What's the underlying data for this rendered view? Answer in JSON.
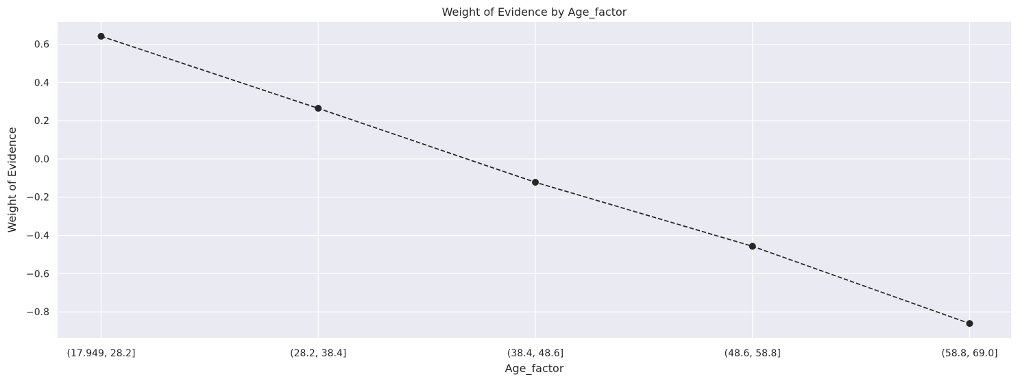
{
  "chart_data": {
    "type": "line",
    "title": "Weight of Evidence by Age_factor",
    "xlabel": "Age_factor",
    "ylabel": "Weight of Evidence",
    "categories": [
      "(17.949, 28.2]",
      "(28.2, 38.4]",
      "(38.4, 48.6]",
      "(48.6, 58.8]",
      "(58.8, 69.0]"
    ],
    "series": [
      {
        "values": [
          0.642,
          0.265,
          -0.122,
          -0.457,
          -0.861
        ]
      }
    ],
    "yticks": [
      0.6,
      0.4,
      0.2,
      0.0,
      -0.2,
      -0.4,
      -0.6,
      -0.8
    ],
    "ytick_labels": [
      "0.6",
      "0.4",
      "0.2",
      "0.0",
      "−0.2",
      "−0.4",
      "−0.6",
      "−0.8"
    ],
    "ylim": [
      -0.936,
      0.717
    ],
    "grid": true,
    "line_style": "dashed",
    "marker": "circle",
    "colors": {
      "plot_bg": "#EAEAF2",
      "grid": "#FFFFFF",
      "line": "#262626",
      "text": "#262626"
    }
  }
}
